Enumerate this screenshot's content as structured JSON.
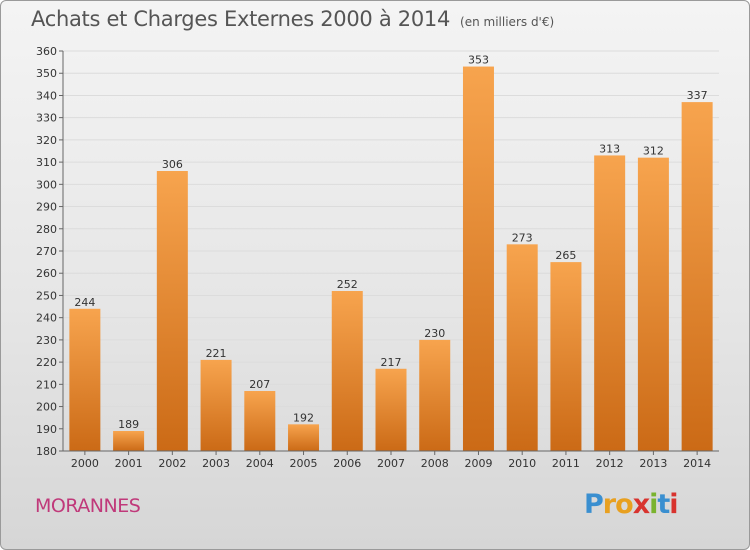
{
  "header": {
    "title": "Achats et Charges Externes 2000 à 2014",
    "subtitle": "(en milliers d'€)"
  },
  "footer": {
    "commune": "MORANNES",
    "logo": {
      "letters": [
        "P",
        "r",
        "o",
        "x",
        "i",
        "t",
        "i"
      ],
      "colors": [
        "#3a8fd0",
        "#e8a020",
        "#e8a020",
        "#d8332e",
        "#7ab32e",
        "#3a8fd0",
        "#d8332e"
      ]
    }
  },
  "colors": {
    "bar_light": "#f7a44e",
    "bar_dark": "#cb6a16",
    "grid": "#dcdcdc",
    "axis": "#666666"
  },
  "chart_data": {
    "type": "bar",
    "categories": [
      "2000",
      "2001",
      "2002",
      "2003",
      "2004",
      "2005",
      "2006",
      "2007",
      "2008",
      "2009",
      "2010",
      "2011",
      "2012",
      "2013",
      "2014"
    ],
    "values": [
      244,
      189,
      306,
      221,
      207,
      192,
      252,
      217,
      230,
      353,
      273,
      265,
      313,
      312,
      337
    ],
    "title": "Achats et Charges Externes 2000 à 2014",
    "ylim": [
      180,
      360
    ],
    "yticks": [
      180,
      190,
      200,
      210,
      220,
      230,
      240,
      250,
      260,
      270,
      280,
      290,
      300,
      310,
      320,
      330,
      340,
      350,
      360
    ],
    "grid": true,
    "data_labels": true
  }
}
